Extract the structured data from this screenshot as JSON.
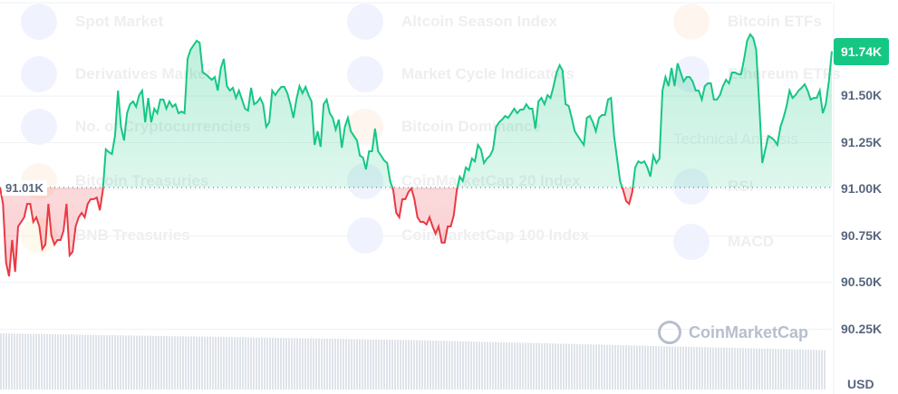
{
  "background_menu": {
    "columns": [
      [
        "Spot Market",
        "Derivatives Market",
        "No. of Cryptocurrencies",
        "Bitcoin Treasuries",
        "BNB Treasuries"
      ],
      [
        "Altcoin Season Index",
        "Market Cycle Indicators",
        "Bitcoin Dominance",
        "CoinMarketCap 20 Index",
        "CoinMarketCap 100 Index"
      ],
      [
        "Bitcoin ETFs",
        "Ethereum ETFs",
        "Technical Analysis",
        "RSI",
        "MACD"
      ]
    ]
  },
  "watermark": "CoinMarketCap",
  "chart_data": {
    "type": "area",
    "title": "",
    "xlabel": "",
    "ylabel": "",
    "unit": "USD",
    "ylim": [
      90.25,
      91.95
    ],
    "y_ticks": [
      "91.50K",
      "91.25K",
      "91.00K",
      "90.75K",
      "90.50K",
      "90.25K"
    ],
    "y_tick_values": [
      91.5,
      91.25,
      91.0,
      90.75,
      90.5,
      90.25
    ],
    "grid": true,
    "baseline": {
      "value": 91.01,
      "label": "91.01K"
    },
    "current": {
      "value": 91.74,
      "label": "91.74K"
    },
    "colors": {
      "above": "#16c784",
      "below": "#ea3943"
    },
    "values": [
      91.01,
      90.922,
      90.607,
      90.534,
      90.728,
      90.558,
      90.801,
      90.825,
      90.85,
      90.922,
      90.922,
      90.825,
      90.85,
      90.801,
      90.68,
      90.704,
      90.922,
      90.752,
      90.704,
      90.728,
      90.728,
      90.777,
      90.922,
      90.646,
      90.665,
      90.801,
      90.85,
      90.874,
      90.85,
      90.922,
      90.947,
      90.947,
      90.956,
      90.888,
      90.995,
      91.214,
      91.199,
      91.189,
      91.286,
      91.529,
      91.335,
      91.262,
      91.408,
      91.456,
      91.471,
      91.442,
      91.505,
      91.529,
      91.359,
      91.49,
      91.359,
      91.432,
      91.408,
      91.481,
      91.481,
      91.432,
      91.471,
      91.442,
      91.456,
      91.408,
      91.417,
      91.408,
      91.699,
      91.748,
      91.772,
      91.796,
      91.786,
      91.626,
      91.617,
      91.602,
      91.587,
      91.602,
      91.529,
      91.65,
      91.699,
      91.553,
      91.529,
      91.544,
      91.49,
      91.529,
      91.481,
      91.432,
      91.422,
      91.544,
      91.456,
      91.466,
      91.49,
      91.456,
      91.335,
      91.359,
      91.529,
      91.505,
      91.529,
      91.549,
      91.549,
      91.515,
      91.456,
      91.383,
      91.481,
      91.553,
      91.515,
      91.549,
      91.505,
      91.471,
      91.238,
      91.311,
      91.228,
      91.456,
      91.481,
      91.408,
      91.383,
      91.32,
      91.374,
      91.223,
      91.335,
      91.383,
      91.311,
      91.286,
      91.262,
      91.18,
      91.17,
      91.107,
      91.204,
      91.204,
      91.325,
      91.204,
      91.18,
      91.155,
      91.141,
      91.044,
      90.995,
      90.874,
      90.85,
      90.947,
      90.947,
      90.985,
      91.005,
      90.947,
      90.85,
      90.825,
      90.825,
      90.811,
      90.85,
      90.801,
      90.762,
      90.801,
      90.714,
      90.714,
      90.801,
      90.801,
      90.859,
      90.995,
      91.068,
      91.044,
      91.117,
      91.102,
      91.165,
      91.15,
      91.238,
      91.214,
      91.141,
      91.165,
      91.18,
      91.214,
      91.335,
      91.359,
      91.374,
      91.393,
      91.383,
      91.408,
      91.432,
      91.408,
      91.427,
      91.427,
      91.456,
      91.432,
      91.432,
      91.325,
      91.471,
      91.49,
      91.456,
      91.505,
      91.49,
      91.553,
      91.626,
      91.665,
      91.636,
      91.456,
      91.447,
      91.383,
      91.311,
      91.286,
      91.262,
      91.238,
      91.383,
      91.393,
      91.359,
      91.311,
      91.383,
      91.398,
      91.398,
      91.481,
      91.49,
      91.286,
      91.165,
      91.044,
      90.995,
      90.937,
      90.922,
      90.985,
      91.117,
      91.15,
      91.141,
      91.15,
      91.117,
      91.068,
      91.18,
      91.141,
      91.165,
      91.529,
      91.602,
      91.553,
      91.65,
      91.553,
      91.675,
      91.626,
      91.578,
      91.602,
      91.602,
      91.578,
      91.529,
      91.529,
      91.481,
      91.553,
      91.568,
      91.568,
      91.481,
      91.481,
      91.505,
      91.553,
      91.587,
      91.568,
      91.626,
      91.626,
      91.617,
      91.617,
      91.699,
      91.796,
      91.83,
      91.811,
      91.748,
      91.456,
      91.141,
      91.214,
      91.286,
      91.277,
      91.262,
      91.238,
      91.335,
      91.383,
      91.442,
      91.529,
      91.49,
      91.505,
      91.529,
      91.544,
      91.563,
      91.529,
      91.481,
      91.49,
      91.49,
      91.529,
      91.408,
      91.456,
      91.578,
      91.74
    ]
  }
}
